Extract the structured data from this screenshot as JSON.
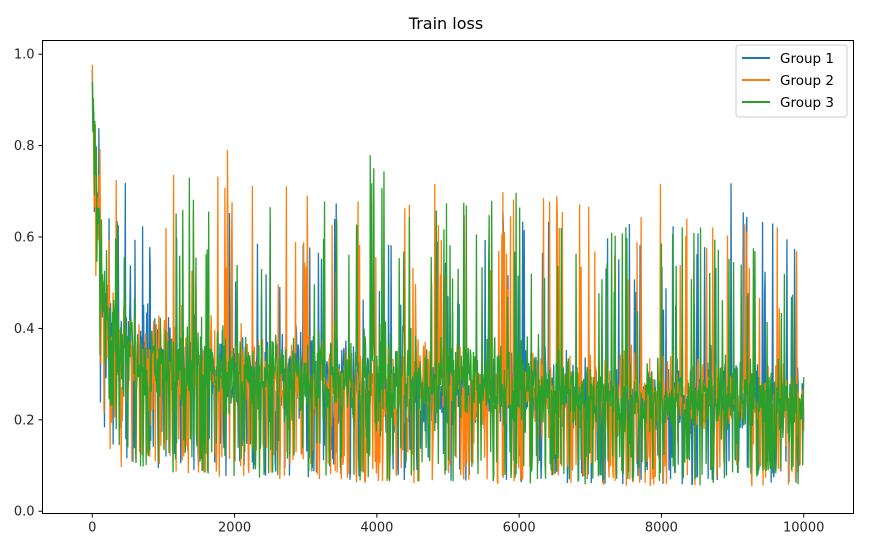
{
  "chart_data": {
    "type": "line",
    "title": "Train loss",
    "xlabel": "",
    "ylabel": "",
    "xlim": [
      -700,
      10700
    ],
    "ylim": [
      -0.005,
      1.03
    ],
    "x_ticks": [
      0,
      2000,
      4000,
      6000,
      8000,
      10000
    ],
    "x_tick_labels": [
      "0",
      "2000",
      "4000",
      "6000",
      "8000",
      "10000"
    ],
    "y_ticks": [
      0.0,
      0.2,
      0.4,
      0.6,
      0.8,
      1.0
    ],
    "y_tick_labels": [
      "0.0",
      "0.2",
      "0.4",
      "0.6",
      "0.8",
      "1.0"
    ],
    "grid": false,
    "legend_position": "top-right",
    "x_range": [
      0,
      10000
    ],
    "series": [
      {
        "name": "Group 1",
        "color": "#1f77b4",
        "x": [
          0,
          20,
          50,
          100,
          150,
          200,
          300,
          400,
          500,
          750,
          1000,
          1500,
          2000,
          2500,
          3000,
          4000,
          5000,
          6000,
          7000,
          8000,
          9000,
          10000
        ],
        "lower": [
          0.85,
          0.72,
          0.45,
          0.25,
          0.16,
          0.13,
          0.11,
          0.1,
          0.095,
          0.09,
          0.085,
          0.08,
          0.075,
          0.075,
          0.07,
          0.068,
          0.065,
          0.063,
          0.06,
          0.058,
          0.057,
          0.056
        ],
        "upper": [
          0.99,
          0.97,
          0.95,
          0.9,
          0.82,
          0.78,
          0.75,
          0.8,
          0.72,
          0.68,
          0.7,
          0.66,
          0.7,
          0.68,
          0.85,
          0.62,
          0.62,
          0.68,
          0.68,
          0.63,
          0.73,
          0.62
        ],
        "mean": [
          0.95,
          0.85,
          0.7,
          0.5,
          0.38,
          0.33,
          0.3,
          0.28,
          0.27,
          0.25,
          0.24,
          0.22,
          0.21,
          0.2,
          0.2,
          0.19,
          0.18,
          0.175,
          0.17,
          0.165,
          0.16,
          0.155
        ]
      },
      {
        "name": "Group 2",
        "color": "#ff7f0e",
        "x": [
          0,
          20,
          50,
          100,
          150,
          200,
          300,
          400,
          500,
          750,
          1000,
          1500,
          2000,
          2500,
          3000,
          4000,
          5000,
          6000,
          7000,
          8000,
          9000,
          10000
        ],
        "lower": [
          0.84,
          0.7,
          0.44,
          0.24,
          0.15,
          0.12,
          0.1,
          0.095,
          0.09,
          0.085,
          0.08,
          0.075,
          0.07,
          0.068,
          0.065,
          0.062,
          0.06,
          0.058,
          0.056,
          0.055,
          0.053,
          0.052
        ],
        "upper": [
          0.98,
          0.96,
          0.93,
          0.88,
          0.83,
          0.76,
          0.74,
          0.7,
          0.72,
          0.72,
          0.84,
          0.7,
          0.83,
          0.72,
          0.73,
          0.7,
          0.72,
          0.7,
          0.68,
          0.72,
          0.7,
          0.64
        ],
        "mean": [
          0.94,
          0.84,
          0.69,
          0.49,
          0.37,
          0.32,
          0.29,
          0.27,
          0.26,
          0.24,
          0.23,
          0.21,
          0.2,
          0.2,
          0.19,
          0.185,
          0.18,
          0.17,
          0.165,
          0.16,
          0.158,
          0.152
        ]
      },
      {
        "name": "Group 3",
        "color": "#2ca02c",
        "x": [
          0,
          20,
          50,
          100,
          150,
          200,
          300,
          400,
          500,
          750,
          1000,
          1500,
          2000,
          2500,
          3000,
          4000,
          5000,
          6000,
          7000,
          8000,
          9000,
          10000
        ],
        "lower": [
          0.86,
          0.73,
          0.46,
          0.26,
          0.16,
          0.13,
          0.11,
          0.1,
          0.095,
          0.09,
          0.085,
          0.08,
          0.075,
          0.072,
          0.07,
          0.066,
          0.063,
          0.06,
          0.058,
          0.057,
          0.056,
          0.055
        ],
        "upper": [
          0.98,
          0.96,
          0.94,
          0.92,
          0.8,
          0.74,
          0.72,
          0.7,
          0.66,
          0.64,
          0.66,
          0.77,
          0.66,
          0.73,
          0.64,
          0.8,
          0.73,
          0.7,
          0.71,
          0.62,
          0.64,
          0.59
        ],
        "mean": [
          0.95,
          0.86,
          0.71,
          0.51,
          0.39,
          0.34,
          0.31,
          0.29,
          0.28,
          0.26,
          0.25,
          0.23,
          0.22,
          0.21,
          0.205,
          0.195,
          0.19,
          0.18,
          0.175,
          0.17,
          0.165,
          0.16
        ]
      }
    ]
  }
}
